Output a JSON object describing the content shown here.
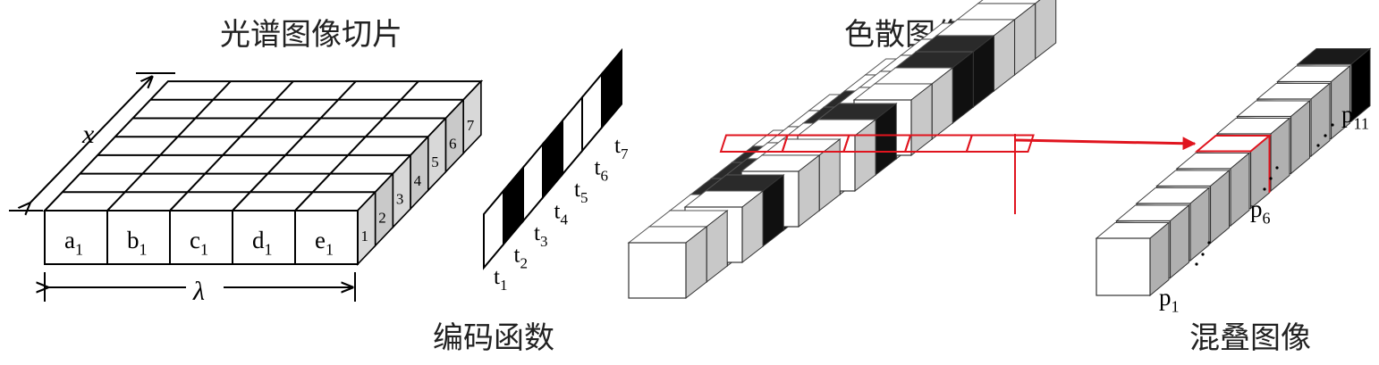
{
  "captions": {
    "spectral_slices": "光谱图像切片",
    "coding_function": "编码函数",
    "dispersed_image": "色散图像",
    "aliased_image": "混叠图像"
  },
  "cube": {
    "x_axis_label": "x",
    "lambda_axis_label": "λ",
    "front_cells": [
      {
        "base": "a",
        "sub": "1"
      },
      {
        "base": "b",
        "sub": "1"
      },
      {
        "base": "c",
        "sub": "1"
      },
      {
        "base": "d",
        "sub": "1"
      },
      {
        "base": "e",
        "sub": "1"
      }
    ],
    "depth_labels": [
      "1",
      "2",
      "3",
      "4",
      "5",
      "6",
      "7"
    ]
  },
  "code_strip": {
    "labels": [
      {
        "base": "t",
        "sub": "1"
      },
      {
        "base": "t",
        "sub": "2"
      },
      {
        "base": "t",
        "sub": "3"
      },
      {
        "base": "t",
        "sub": "4"
      },
      {
        "base": "t",
        "sub": "5"
      },
      {
        "base": "t",
        "sub": "6"
      },
      {
        "base": "t",
        "sub": "7"
      }
    ]
  },
  "aliased_column": {
    "labels": [
      {
        "base": "p",
        "sub": "1"
      },
      {
        "base": "p",
        "sub": "6"
      },
      {
        "base": "p",
        "sub": "11"
      }
    ]
  },
  "colors": {
    "highlight": "#e0141e",
    "dark": "#2a2a2a",
    "line": "#000000"
  }
}
